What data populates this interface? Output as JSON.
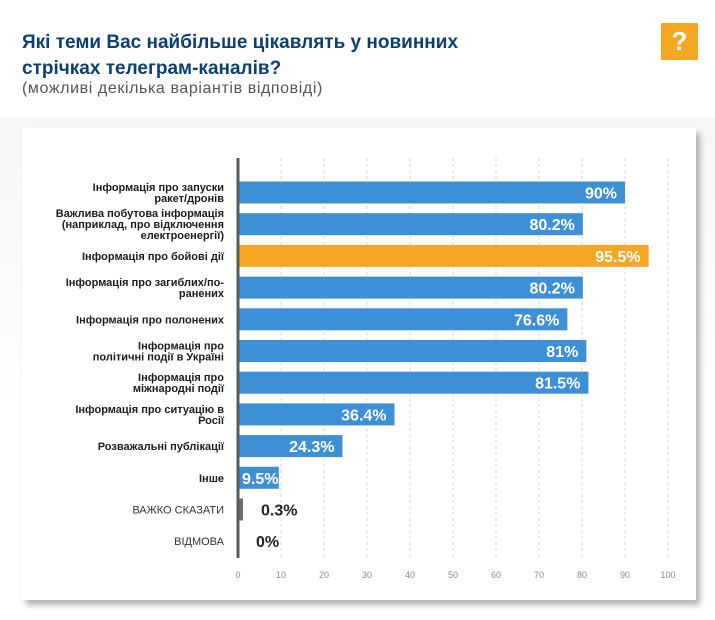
{
  "header": {
    "title_line1": "Які теми Вас найбільше цікавлять у новинних",
    "title_line2": "стрічках телеграм-каналів?",
    "subtitle": "(можливі декілька варіантів відповіді)",
    "help_label": "?"
  },
  "colors": {
    "title": "#0c3f73",
    "bar": "#3d8fd6",
    "highlight": "#f6a623",
    "muted": "#6e6e6e",
    "help": "#f5a623"
  },
  "chart_data": {
    "type": "bar",
    "orientation": "horizontal",
    "categories": [
      [
        "Інформація про запуски",
        "ракет/дронів"
      ],
      [
        "Важлива побутова інформація",
        "(наприклад, про відключення",
        "електроенергії)"
      ],
      [
        "Інформація про бойові дії"
      ],
      [
        "Інформація про загиблих/по-",
        "ранених"
      ],
      [
        "Інформація про полонених"
      ],
      [
        "Інформація про",
        "політичні події в Україні"
      ],
      [
        "Інформація про",
        "міжнародні події"
      ],
      [
        "Інформація про ситуацію в",
        "Росії"
      ],
      [
        "Розважальні публікації"
      ],
      [
        "Інше"
      ],
      [
        "ВАЖКО СКАЗАТИ"
      ],
      [
        "ВІДМОВА"
      ]
    ],
    "values": [
      90,
      80.2,
      95.5,
      80.2,
      76.6,
      81,
      81.5,
      36.4,
      24.3,
      9.5,
      0.3,
      0
    ],
    "value_labels": [
      "90%",
      "80.2%",
      "95.5%",
      "80.2%",
      "76.6%",
      "81%",
      "81.5%",
      "36.4%",
      "24.3%",
      "9.5%",
      "0.3%",
      "0%"
    ],
    "highlight_index": 2,
    "muted_indices": [
      10,
      11
    ],
    "xlim": [
      0,
      100
    ],
    "xticks": [
      0,
      10,
      20,
      30,
      40,
      50,
      60,
      70,
      80,
      90,
      100
    ],
    "grid": true,
    "xlabel": "",
    "ylabel": ""
  }
}
